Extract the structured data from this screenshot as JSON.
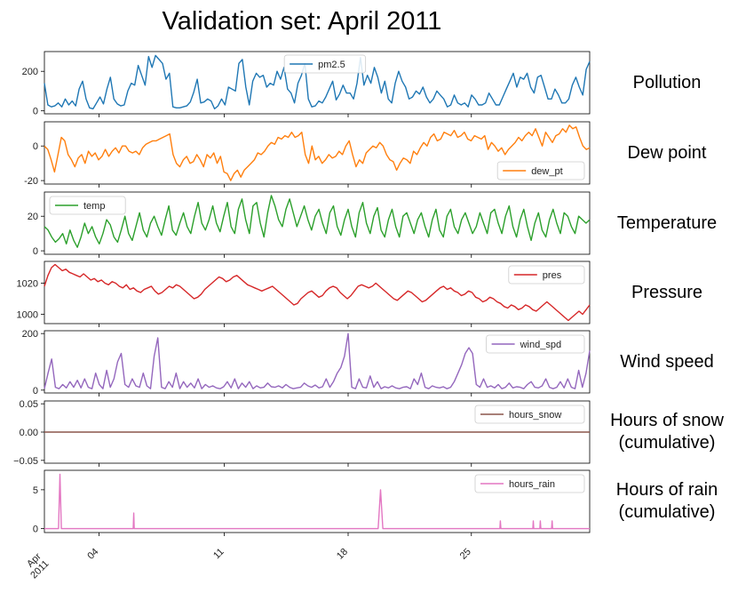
{
  "title": "Validation set: April 2011",
  "chart_data": [
    {
      "type": "line",
      "side_label": "Pollution",
      "series": [
        {
          "name": "pm2.5",
          "color": "#1f77b4",
          "values": [
            140,
            30,
            20,
            25,
            40,
            20,
            60,
            30,
            50,
            25,
            110,
            150,
            60,
            15,
            10,
            40,
            70,
            35,
            110,
            170,
            60,
            35,
            25,
            30,
            100,
            140,
            130,
            230,
            180,
            130,
            275,
            220,
            280,
            260,
            240,
            160,
            190,
            20,
            15,
            15,
            20,
            25,
            45,
            95,
            160,
            40,
            45,
            60,
            50,
            10,
            25,
            60,
            30,
            120,
            110,
            100,
            240,
            260,
            120,
            30,
            150,
            190,
            170,
            180,
            120,
            140,
            130,
            200,
            160,
            220,
            110,
            90,
            40,
            140,
            180,
            240,
            60,
            20,
            25,
            50,
            40,
            70,
            110,
            150,
            55,
            85,
            130,
            90,
            90,
            60,
            140,
            270,
            130,
            180,
            140,
            220,
            170,
            90,
            150,
            60,
            40,
            140,
            200,
            150,
            120,
            60,
            70,
            100,
            85,
            120,
            70,
            40,
            60,
            100,
            80,
            60,
            20,
            30,
            80,
            40,
            30,
            40,
            20,
            80,
            60,
            30,
            30,
            40,
            90,
            60,
            30,
            30,
            70,
            110,
            150,
            190,
            120,
            170,
            160,
            190,
            120,
            90,
            170,
            180,
            120,
            60,
            60,
            110,
            80,
            40,
            40,
            60,
            130,
            170,
            120,
            80,
            210,
            250
          ]
        }
      ],
      "yticks": [
        0,
        200
      ],
      "ylim": [
        -15,
        300
      ],
      "legend_position": "top-center"
    },
    {
      "type": "line",
      "side_label": "Dew point",
      "series": [
        {
          "name": "dew_pt",
          "color": "#ff7f0e",
          "values": [
            0,
            -2,
            -8,
            -15,
            -5,
            5,
            3,
            -5,
            -8,
            -12,
            -7,
            -5,
            -10,
            -3,
            -6,
            -4,
            -8,
            -6,
            -2,
            -6,
            -3,
            -1,
            -4,
            0,
            0,
            -3,
            -4,
            -3,
            -5,
            -1,
            1,
            2,
            3,
            3,
            4,
            5,
            6,
            7,
            -5,
            -10,
            -12,
            -8,
            -6,
            -10,
            -9,
            -5,
            -8,
            -12,
            -5,
            -7,
            -4,
            -10,
            -6,
            -15,
            -16,
            -20,
            -16,
            -14,
            -18,
            -14,
            -12,
            -10,
            -8,
            -4,
            -5,
            -3,
            0,
            2,
            1,
            5,
            4,
            6,
            5,
            8,
            5,
            6,
            8,
            -5,
            -10,
            0,
            -8,
            -6,
            -10,
            -8,
            -5,
            -7,
            -6,
            -3,
            -5,
            0,
            3,
            -5,
            -12,
            -8,
            -10,
            -4,
            -2,
            0,
            -1,
            2,
            0,
            -5,
            -8,
            -9,
            -14,
            -10,
            -7,
            -8,
            -10,
            -3,
            -5,
            -1,
            2,
            0,
            5,
            7,
            3,
            4,
            8,
            7,
            6,
            9,
            5,
            6,
            8,
            4,
            3,
            6,
            5,
            4,
            6,
            -2,
            2,
            0,
            -3,
            -1,
            -5,
            -2,
            0,
            2,
            5,
            3,
            6,
            8,
            6,
            10,
            5,
            0,
            8,
            5,
            2,
            6,
            7,
            10,
            8,
            12,
            10,
            11,
            5,
            0,
            -2,
            -1
          ]
        }
      ],
      "yticks": [
        -20,
        0
      ],
      "ylim": [
        -22,
        14
      ],
      "legend_position": "bottom-right"
    },
    {
      "type": "line",
      "side_label": "Temperature",
      "series": [
        {
          "name": "temp",
          "color": "#2ca02c",
          "values": [
            14,
            12,
            8,
            5,
            7,
            10,
            4,
            12,
            6,
            2,
            8,
            16,
            10,
            14,
            8,
            4,
            10,
            18,
            15,
            8,
            5,
            12,
            20,
            10,
            6,
            14,
            22,
            12,
            8,
            16,
            20,
            14,
            9,
            18,
            26,
            12,
            9,
            16,
            22,
            14,
            10,
            20,
            28,
            16,
            12,
            18,
            26,
            16,
            11,
            20,
            28,
            14,
            10,
            24,
            30,
            18,
            10,
            26,
            28,
            16,
            8,
            22,
            32,
            26,
            18,
            14,
            24,
            30,
            22,
            14,
            20,
            26,
            18,
            12,
            20,
            24,
            16,
            10,
            22,
            26,
            14,
            9,
            18,
            24,
            14,
            8,
            22,
            28,
            16,
            10,
            20,
            25,
            12,
            8,
            18,
            24,
            14,
            8,
            20,
            22,
            16,
            10,
            18,
            22,
            14,
            8,
            18,
            24,
            12,
            8,
            20,
            24,
            14,
            10,
            18,
            22,
            16,
            10,
            14,
            22,
            16,
            10,
            22,
            24,
            16,
            10,
            20,
            26,
            14,
            8,
            18,
            24,
            14,
            6,
            16,
            22,
            12,
            8,
            18,
            24,
            16,
            10,
            22,
            20,
            14,
            10,
            20,
            18,
            16,
            18
          ]
        }
      ],
      "yticks": [
        0,
        20
      ],
      "ylim": [
        -2,
        34
      ],
      "legend_position": "top-left"
    },
    {
      "type": "line",
      "side_label": "Pressure",
      "series": [
        {
          "name": "pres",
          "color": "#d62728",
          "values": [
            1018,
            1025,
            1030,
            1032,
            1030,
            1028,
            1029,
            1027,
            1026,
            1025,
            1024,
            1026,
            1024,
            1022,
            1023,
            1021,
            1022,
            1020,
            1019,
            1021,
            1020,
            1018,
            1017,
            1019,
            1016,
            1017,
            1015,
            1014,
            1016,
            1017,
            1018,
            1015,
            1013,
            1014,
            1016,
            1018,
            1017,
            1019,
            1018,
            1016,
            1014,
            1012,
            1010,
            1011,
            1013,
            1016,
            1018,
            1020,
            1022,
            1024,
            1023,
            1021,
            1022,
            1024,
            1025,
            1023,
            1021,
            1019,
            1018,
            1017,
            1016,
            1015,
            1016,
            1017,
            1018,
            1016,
            1014,
            1012,
            1010,
            1008,
            1006,
            1007,
            1010,
            1012,
            1014,
            1015,
            1013,
            1011,
            1012,
            1015,
            1017,
            1018,
            1017,
            1014,
            1012,
            1010,
            1012,
            1015,
            1018,
            1019,
            1018,
            1017,
            1018,
            1020,
            1018,
            1016,
            1014,
            1012,
            1010,
            1009,
            1011,
            1013,
            1015,
            1014,
            1012,
            1010,
            1008,
            1009,
            1011,
            1013,
            1015,
            1017,
            1018,
            1016,
            1017,
            1015,
            1014,
            1012,
            1013,
            1015,
            1014,
            1011,
            1010,
            1008,
            1009,
            1011,
            1010,
            1008,
            1007,
            1005,
            1004,
            1006,
            1005,
            1003,
            1004,
            1006,
            1005,
            1003,
            1002,
            1004,
            1006,
            1008,
            1006,
            1004,
            1002,
            1000,
            998,
            996,
            998,
            1000,
            1002,
            1000,
            1003,
            1006
          ]
        }
      ],
      "yticks": [
        1000,
        1020
      ],
      "ylim": [
        994,
        1034
      ],
      "legend_position": "top-right"
    },
    {
      "type": "line",
      "side_label": "Wind speed",
      "series": [
        {
          "name": "wind_spd",
          "color": "#9467bd",
          "values": [
            5,
            60,
            110,
            10,
            5,
            20,
            8,
            30,
            10,
            35,
            8,
            40,
            10,
            5,
            60,
            20,
            5,
            70,
            10,
            40,
            100,
            130,
            20,
            10,
            40,
            15,
            10,
            60,
            15,
            5,
            120,
            185,
            10,
            5,
            30,
            10,
            60,
            5,
            30,
            10,
            25,
            8,
            40,
            5,
            20,
            10,
            15,
            8,
            5,
            12,
            30,
            8,
            40,
            5,
            25,
            10,
            30,
            5,
            15,
            8,
            10,
            25,
            12,
            10,
            15,
            8,
            20,
            10,
            5,
            8,
            10,
            25,
            15,
            10,
            18,
            8,
            12,
            40,
            10,
            30,
            60,
            80,
            120,
            200,
            10,
            5,
            40,
            10,
            8,
            50,
            10,
            30,
            5,
            12,
            8,
            15,
            8,
            5,
            10,
            12,
            5,
            40,
            20,
            60,
            10,
            5,
            15,
            10,
            8,
            12,
            5,
            10,
            30,
            60,
            90,
            130,
            150,
            130,
            20,
            10,
            40,
            10,
            15,
            8,
            20,
            5,
            10,
            25,
            8,
            12,
            10,
            5,
            20,
            30,
            10,
            8,
            15,
            40,
            10,
            5,
            10,
            30,
            8,
            40,
            10,
            5,
            70,
            10,
            60,
            140
          ]
        }
      ],
      "yticks": [
        0,
        200
      ],
      "ylim": [
        -10,
        210
      ],
      "legend_position": "top-right"
    },
    {
      "type": "line",
      "side_label": "Hours of snow\n(cumulative)",
      "series": [
        {
          "name": "hours_snow",
          "color": "#8c564b",
          "values": [
            0,
            0
          ]
        }
      ],
      "yticks": [
        -0.05,
        0.0,
        0.05
      ],
      "ytick_labels": [
        "−0.05",
        "0.00",
        "0.05"
      ],
      "ylim": [
        -0.055,
        0.055
      ],
      "legend_position": "top-right"
    },
    {
      "type": "line",
      "side_label": "Hours of rain\n(cumulative)",
      "series": [
        {
          "name": "hours_rain",
          "color": "#e377c2",
          "points": [
            [
              0,
              0
            ],
            [
              3.0,
              0
            ],
            [
              3.3,
              7
            ],
            [
              3.6,
              0
            ],
            [
              18.9,
              0
            ],
            [
              19.0,
              2
            ],
            [
              19.1,
              0
            ],
            [
              71.0,
              0
            ],
            [
              71.5,
              5
            ],
            [
              72.0,
              0
            ],
            [
              96.9,
              0
            ],
            [
              97.0,
              1
            ],
            [
              97.1,
              0
            ],
            [
              103.9,
              0
            ],
            [
              104.0,
              1
            ],
            [
              104.1,
              0
            ],
            [
              105.4,
              0
            ],
            [
              105.5,
              1
            ],
            [
              105.6,
              0
            ],
            [
              107.9,
              0
            ],
            [
              108.0,
              1
            ],
            [
              108.1,
              0
            ],
            [
              116,
              0
            ]
          ]
        }
      ],
      "yticks": [
        0,
        5
      ],
      "ylim": [
        -0.5,
        7.5
      ],
      "legend_position": "top-right"
    }
  ],
  "x_axis": {
    "tick_labels": [
      "04",
      "11",
      "18",
      "25"
    ],
    "first_label": "Apr\n2011"
  }
}
